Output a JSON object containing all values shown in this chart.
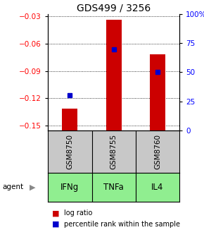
{
  "title": "GDS499 / 3256",
  "gsm_labels": [
    "GSM8750",
    "GSM8755",
    "GSM8760"
  ],
  "agent_labels": [
    "IFNg",
    "TNFa",
    "IL4"
  ],
  "log_ratios": [
    -0.131,
    -0.034,
    -0.072
  ],
  "percentile_ranks": [
    30,
    70,
    50
  ],
  "ylim_left": [
    -0.155,
    -0.028
  ],
  "ylim_right": [
    0,
    100
  ],
  "yticks_left": [
    -0.15,
    -0.12,
    -0.09,
    -0.06,
    -0.03
  ],
  "yticks_right": [
    0,
    25,
    50,
    75,
    100
  ],
  "ytick_right_labels": [
    "0",
    "25",
    "50",
    "75",
    "100%"
  ],
  "bar_color": "#cc0000",
  "dot_color": "#0000cc",
  "agent_bg_color": "#90ee90",
  "gsm_bg_color": "#c8c8c8",
  "bar_width": 0.35,
  "title_fontsize": 10,
  "tick_fontsize": 7.5,
  "gsm_fontsize": 7.5,
  "agent_fontsize": 8.5,
  "legend_fontsize": 7
}
